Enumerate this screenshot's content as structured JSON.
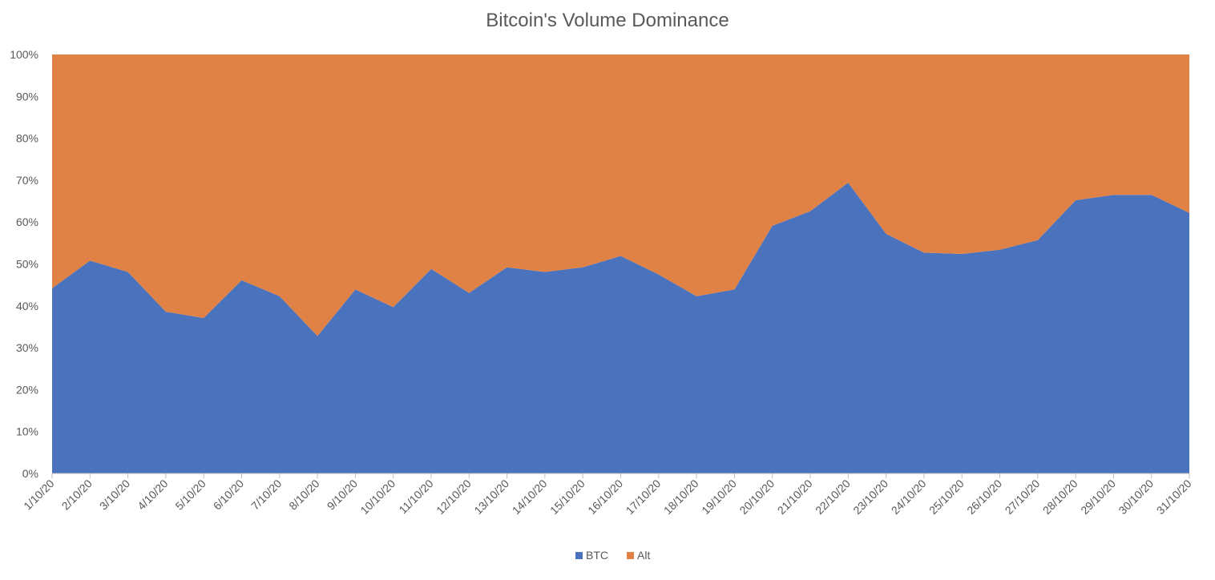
{
  "chart_data": {
    "type": "area",
    "stacked": true,
    "percent": true,
    "title": "Bitcoin's Volume Dominance",
    "xlabel": "",
    "ylabel": "",
    "ylim": [
      0,
      100
    ],
    "y_ticks": [
      "0%",
      "10%",
      "20%",
      "30%",
      "40%",
      "50%",
      "60%",
      "70%",
      "80%",
      "90%",
      "100%"
    ],
    "categories": [
      "1/10/20",
      "2/10/20",
      "3/10/20",
      "4/10/20",
      "5/10/20",
      "6/10/20",
      "7/10/20",
      "8/10/20",
      "9/10/20",
      "10/10/20",
      "11/10/20",
      "12/10/20",
      "13/10/20",
      "14/10/20",
      "15/10/20",
      "16/10/20",
      "17/10/20",
      "18/10/20",
      "19/10/20",
      "20/10/20",
      "21/10/20",
      "22/10/20",
      "23/10/20",
      "24/10/20",
      "25/10/20",
      "26/10/20",
      "27/10/20",
      "28/10/20",
      "29/10/20",
      "30/10/20",
      "31/10/20"
    ],
    "series": [
      {
        "name": "BTC",
        "color": "#4a72bd",
        "values": [
          44.2,
          50.8,
          48.1,
          38.6,
          37.1,
          46.1,
          42.3,
          32.8,
          43.9,
          39.7,
          48.8,
          43.1,
          49.2,
          48.1,
          49.2,
          51.9,
          47.5,
          42.3,
          43.9,
          59.1,
          62.6,
          69.4,
          57.2,
          52.7,
          52.4,
          53.4,
          55.7,
          65.2,
          66.5,
          66.5,
          62.2
        ]
      },
      {
        "name": "Alt",
        "color": "#e08245",
        "values": [
          55.8,
          49.2,
          51.9,
          61.4,
          62.9,
          53.9,
          57.7,
          67.2,
          56.1,
          60.3,
          51.2,
          56.9,
          50.8,
          51.9,
          50.8,
          48.1,
          52.5,
          57.7,
          56.1,
          40.9,
          37.4,
          30.6,
          42.8,
          47.3,
          47.6,
          46.6,
          44.3,
          34.8,
          33.5,
          33.5,
          37.8
        ]
      }
    ],
    "grid": false,
    "legend": "bottom"
  }
}
